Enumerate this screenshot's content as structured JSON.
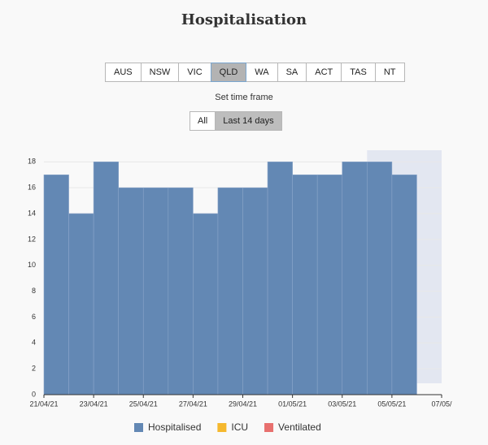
{
  "title": "Hospitalisation",
  "regions": [
    "AUS",
    "NSW",
    "VIC",
    "QLD",
    "WA",
    "SA",
    "ACT",
    "TAS",
    "NT"
  ],
  "selected_region": 3,
  "time_frame_label": "Set time frame",
  "time_frames": [
    "All",
    "Last 14 days"
  ],
  "selected_time_frame": 1,
  "chart_data": {
    "type": "histogram",
    "x": [
      0,
      1,
      2,
      3,
      4,
      5,
      6,
      7,
      8,
      9,
      10,
      11,
      12,
      13,
      14
    ],
    "values": [
      17,
      14,
      18,
      16,
      16,
      16,
      14,
      16,
      16,
      18,
      17,
      17,
      18,
      18,
      17
    ],
    "color": "#6388b4",
    "xlim": [
      0,
      16
    ],
    "xticks": [
      {
        "value": 0,
        "label": "21/04/21"
      },
      {
        "value": 2,
        "label": "23/04/21"
      },
      {
        "value": 4,
        "label": "25/04/21"
      },
      {
        "value": 6,
        "label": "27/04/21"
      },
      {
        "value": 8,
        "label": "29/04/21"
      },
      {
        "value": 10,
        "label": "01/05/21"
      },
      {
        "value": 12,
        "label": "03/05/21"
      },
      {
        "value": 14,
        "label": "05/05/21"
      },
      {
        "value": 16,
        "label": "07/05/"
      }
    ],
    "ylim": [
      0,
      18.9
    ],
    "yticks": [
      0,
      2,
      4,
      6,
      8,
      10,
      12,
      14,
      16,
      18
    ],
    "grid": true,
    "shaded_range": [
      13,
      16
    ],
    "legend": [
      {
        "name": "Hospitalised",
        "color": "#6388b4"
      },
      {
        "name": "ICU",
        "color": "#f5b82e"
      },
      {
        "name": "Ventilated",
        "color": "#e8706e"
      }
    ]
  }
}
